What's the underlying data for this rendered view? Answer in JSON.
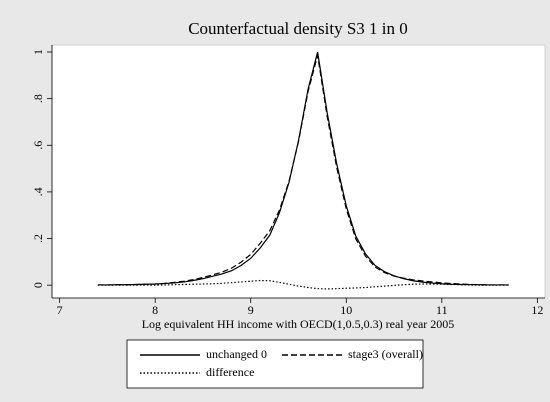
{
  "chart_data": {
    "type": "line",
    "title": "Counterfactual density S3 1 in 0",
    "x_label": "Log equivalent HH income with OECD(1,0.5,0.3) real year 2005",
    "x": [
      7.4,
      7.5,
      7.6,
      7.7,
      7.8,
      7.9,
      8.0,
      8.1,
      8.2,
      8.3,
      8.4,
      8.5,
      8.6,
      8.7,
      8.8,
      8.9,
      9.0,
      9.1,
      9.2,
      9.3,
      9.4,
      9.5,
      9.6,
      9.7,
      9.8,
      9.9,
      10.0,
      10.1,
      10.2,
      10.3,
      10.4,
      10.5,
      10.6,
      10.7,
      10.8,
      10.9,
      11.0,
      11.1,
      11.2,
      11.3,
      11.4,
      11.5,
      11.6,
      11.7
    ],
    "series": [
      {
        "name": "unchanged 0",
        "color": "#000000",
        "dash": "solid",
        "values": [
          0.001,
          0.001,
          0.002,
          0.002,
          0.003,
          0.004,
          0.005,
          0.007,
          0.01,
          0.014,
          0.02,
          0.028,
          0.038,
          0.048,
          0.062,
          0.085,
          0.115,
          0.16,
          0.215,
          0.31,
          0.44,
          0.62,
          0.84,
          1.0,
          0.74,
          0.52,
          0.34,
          0.21,
          0.135,
          0.085,
          0.058,
          0.04,
          0.028,
          0.019,
          0.013,
          0.009,
          0.006,
          0.004,
          0.003,
          0.002,
          0.002,
          0.001,
          0.001,
          0.001
        ]
      },
      {
        "name": "stage3 (overall)",
        "color": "#000000",
        "dash": "dashed",
        "values": [
          0.001,
          0.001,
          0.002,
          0.002,
          0.003,
          0.004,
          0.005,
          0.008,
          0.012,
          0.017,
          0.024,
          0.033,
          0.044,
          0.056,
          0.073,
          0.099,
          0.132,
          0.18,
          0.234,
          0.322,
          0.444,
          0.616,
          0.83,
          0.985,
          0.724,
          0.505,
          0.327,
          0.198,
          0.125,
          0.078,
          0.054,
          0.039,
          0.03,
          0.023,
          0.018,
          0.014,
          0.01,
          0.007,
          0.005,
          0.003,
          0.002,
          0.001,
          0.001,
          0.001
        ]
      },
      {
        "name": "difference",
        "color": "#000000",
        "dash": "dotted",
        "values": [
          0,
          0,
          0,
          0,
          0,
          0,
          0,
          0.001,
          0.002,
          0.003,
          0.004,
          0.005,
          0.006,
          0.008,
          0.011,
          0.014,
          0.017,
          0.02,
          0.019,
          0.012,
          0.004,
          -0.004,
          -0.01,
          -0.015,
          -0.016,
          -0.015,
          -0.013,
          -0.012,
          -0.01,
          -0.007,
          -0.004,
          -0.001,
          0.002,
          0.004,
          0.005,
          0.005,
          0.004,
          0.003,
          0.002,
          0.001,
          0,
          0,
          0,
          0
        ]
      }
    ],
    "xlim": [
      6.92,
      12.08
    ],
    "ylim": [
      -0.055,
      1.03
    ],
    "xticks": [
      7,
      8,
      9,
      10,
      11,
      12
    ],
    "yticks": [
      0,
      {
        "value": 0.2,
        "label": ".2"
      },
      {
        "value": 0.4,
        "label": ".4"
      },
      {
        "value": 0.6,
        "label": ".6"
      },
      {
        "value": 0.8,
        "label": ".8"
      },
      1
    ],
    "grid": false
  }
}
